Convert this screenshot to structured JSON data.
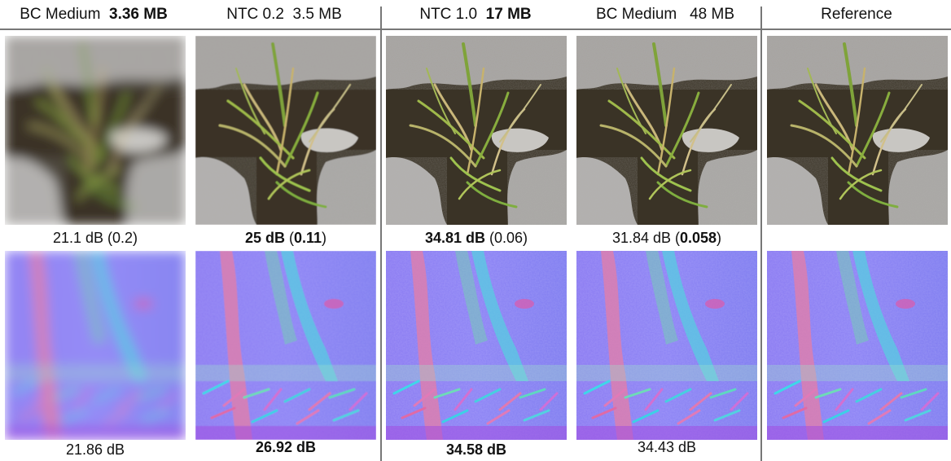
{
  "columns": [
    {
      "method": "BC Medium",
      "size": "3.36 MB"
    },
    {
      "method": "NTC 0.2",
      "size": "3.5 MB"
    },
    {
      "method": "NTC 1.0",
      "size": "17 MB"
    },
    {
      "method": "BC Medium",
      "size": "48 MB"
    },
    {
      "method": "Reference",
      "size": ""
    }
  ],
  "top_row": [
    {
      "psnr": "21.1 dB",
      "lpips": "0.2"
    },
    {
      "psnr": "25 dB",
      "lpips": "0.11"
    },
    {
      "psnr": "34.81 dB",
      "lpips": "0.06"
    },
    {
      "psnr": "31.84 dB",
      "lpips": "0.058"
    }
  ],
  "bottom_row": [
    {
      "psnr": "21.86 dB"
    },
    {
      "psnr": "26.92 dB"
    },
    {
      "psnr": "34.58 dB"
    },
    {
      "psnr": "34.43 dB"
    }
  ],
  "image_alt": {
    "albedo": "Grass growing between stone paving",
    "normal": "Normal map of grass between stones"
  }
}
